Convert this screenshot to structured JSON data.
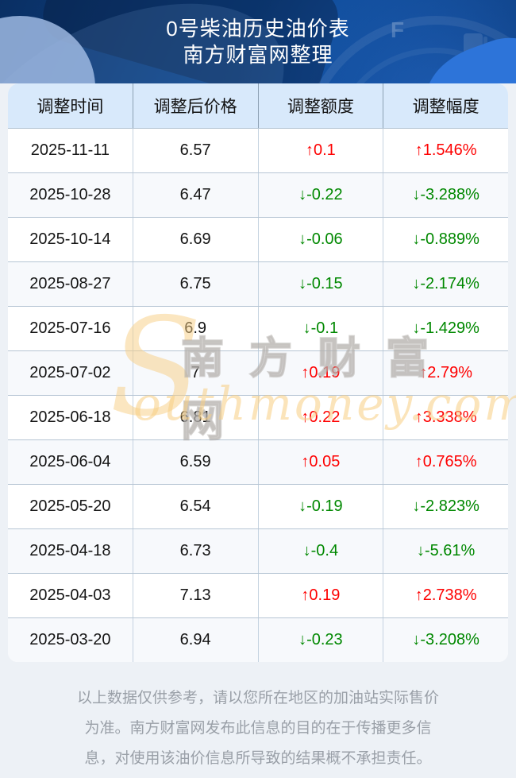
{
  "hero": {
    "title": "0号柴油历史油价表",
    "subtitle": "南方财富网整理",
    "gauge_label": "F"
  },
  "chart_data": {
    "type": "table",
    "title": "0号柴油历史油价表",
    "columns": [
      "调整时间",
      "调整后价格",
      "调整额度",
      "调整幅度"
    ],
    "rows": [
      {
        "date": "2025-11-11",
        "price": "6.57",
        "change": "↑0.1",
        "pct": "↑1.546%",
        "trend": "up"
      },
      {
        "date": "2025-10-28",
        "price": "6.47",
        "change": "↓-0.22",
        "pct": "↓-3.288%",
        "trend": "down"
      },
      {
        "date": "2025-10-14",
        "price": "6.69",
        "change": "↓-0.06",
        "pct": "↓-0.889%",
        "trend": "down"
      },
      {
        "date": "2025-08-27",
        "price": "6.75",
        "change": "↓-0.15",
        "pct": "↓-2.174%",
        "trend": "down"
      },
      {
        "date": "2025-07-16",
        "price": "6.9",
        "change": "↓-0.1",
        "pct": "↓-1.429%",
        "trend": "down"
      },
      {
        "date": "2025-07-02",
        "price": "7",
        "change": "↑0.19",
        "pct": "↑2.79%",
        "trend": "up"
      },
      {
        "date": "2025-06-18",
        "price": "6.81",
        "change": "↑0.22",
        "pct": "↑3.338%",
        "trend": "up"
      },
      {
        "date": "2025-06-04",
        "price": "6.59",
        "change": "↑0.05",
        "pct": "↑0.765%",
        "trend": "up"
      },
      {
        "date": "2025-05-20",
        "price": "6.54",
        "change": "↓-0.19",
        "pct": "↓-2.823%",
        "trend": "down"
      },
      {
        "date": "2025-04-18",
        "price": "6.73",
        "change": "↓-0.4",
        "pct": "↓-5.61%",
        "trend": "down"
      },
      {
        "date": "2025-04-03",
        "price": "7.13",
        "change": "↑0.19",
        "pct": "↑2.738%",
        "trend": "up"
      },
      {
        "date": "2025-03-20",
        "price": "6.94",
        "change": "↓-0.23",
        "pct": "↓-3.208%",
        "trend": "down"
      }
    ]
  },
  "colors": {
    "up": "#fe0000",
    "down": "#008800",
    "hero_bg": "#0d4184",
    "thead_bg": "#d8e9fb",
    "watermark": "#f7ce82"
  },
  "watermark": {
    "initial": "S",
    "cn": "南方财富网",
    "en_rest": "outhmoney.com"
  },
  "footer": {
    "lines": [
      "以上数据仅供参考，请以您所在地区的加油站实际售价",
      "为准。南方财富网发布此信息的目的在于传播更多信",
      "息，对使用该油价信息所导致的结果概不承担责任。"
    ]
  }
}
